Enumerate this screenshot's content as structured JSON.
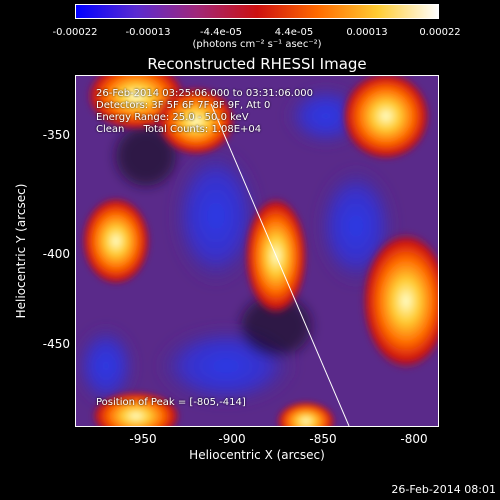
{
  "colorbar": {
    "ticks": [
      "-0.00022",
      "-0.00013",
      "-4.4e-05",
      "4.4e-05",
      "0.00013",
      "0.00022"
    ],
    "unit_label": "(photons cm⁻² s⁻¹ asec⁻²)",
    "gradient_colors": [
      "#0000ff",
      "#5a2bd0",
      "#a0287a",
      "#cc1010",
      "#ff6a00",
      "#ffcc33",
      "#ffffff"
    ]
  },
  "title": "Reconstructed RHESSI Image",
  "info": {
    "time_range": "26-Feb-2014 03:25:06.000 to 03:31:06.000",
    "detectors": "Detectors: 3F 5F 6F 7F 8F 9F, Att 0",
    "energy_range": "Energy Range: 25.0 - 50.0 keV",
    "method_counts": "Clean      Total Counts: 1.08E+04"
  },
  "peak_position": "Position of Peak = [-805,-414]",
  "axes": {
    "x_label": "Heliocentric X (arcsec)",
    "y_label": "Heliocentric Y (arcsec)",
    "x_ticks": [
      "-950",
      "-900",
      "-850",
      "-800"
    ],
    "y_ticks": [
      "-350",
      "-400",
      "-450"
    ]
  },
  "footer_timestamp": "26-Feb-2014 08:01"
}
